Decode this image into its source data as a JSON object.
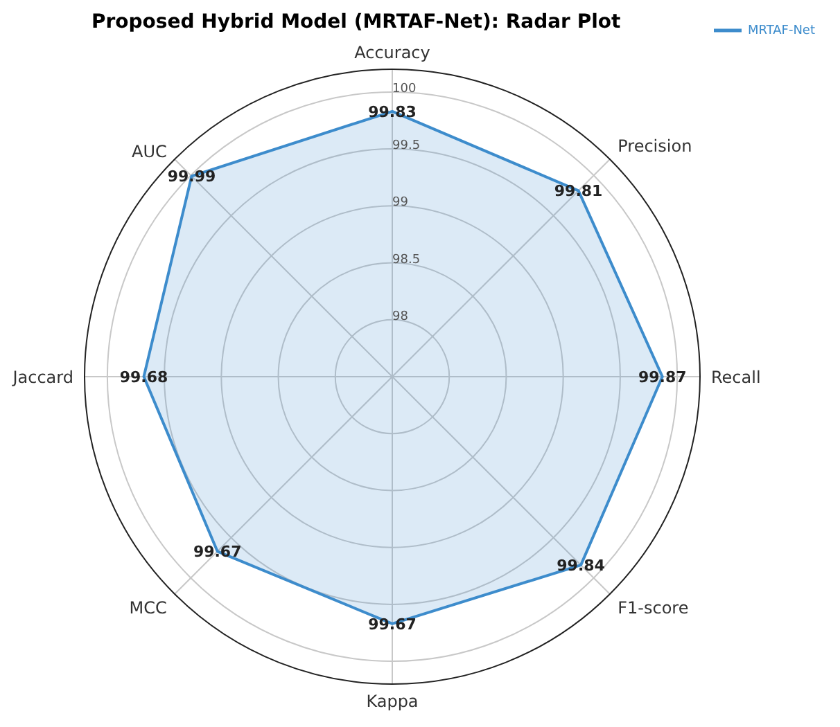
{
  "chart_data": {
    "type": "radar",
    "title": "Proposed Hybrid Model (MRTAF-Net): Radar Plot",
    "categories": [
      "Accuracy",
      "Precision",
      "Recall",
      "F1-score",
      "Kappa",
      "MCC",
      "Jaccard",
      "AUC"
    ],
    "series": [
      {
        "name": "MRTAF-Net",
        "color": "#3d8ccc",
        "values": [
          99.83,
          99.81,
          99.87,
          99.84,
          99.67,
          99.67,
          99.68,
          99.99
        ]
      }
    ],
    "ylim": [
      97.5,
      100.2
    ],
    "yticks": [
      98,
      98.5,
      99,
      99.5,
      100
    ],
    "grid": true,
    "legend": "top right",
    "data_labels": true
  }
}
